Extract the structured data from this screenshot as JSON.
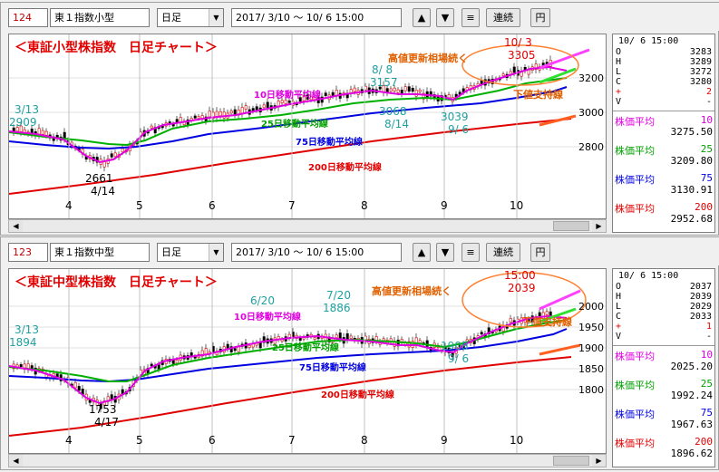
{
  "panels": [
    {
      "code": "124",
      "name": "東１指数小型",
      "period": "日足",
      "range": "2017/ 3/10 ～ 10/ 6 15:00",
      "buttons": {
        "up": "▲",
        "down": "▼",
        "menu": "≡",
        "continuous": "連続",
        "yen": "円"
      },
      "title": "＜東証小型株指数　日足チャート＞",
      "annotations": {
        "high_note": "高値更新相場続く",
        "support": "下値支持線",
        "ma10": "10日移動平均線",
        "ma25": "25日移動平均線",
        "ma75": "75日移動平均線",
        "ma200": "200日移動平均線",
        "d313": "3/13",
        "v313": "2909",
        "d414": "4/14",
        "v414": "2661",
        "d88": "8/ 8",
        "v88": "3157",
        "d814": "8/14",
        "v814": "3068",
        "d96": "9/ 6",
        "v96": "3039",
        "d103": "10/ 3",
        "v103": "3305"
      },
      "yticks": [
        "3200",
        "3000",
        "2800"
      ],
      "months": [
        "4",
        "5",
        "6",
        "7",
        "8",
        "9",
        "10"
      ],
      "info": {
        "date": "10/ 6 15:00",
        "ohlc": [
          {
            "k": "O",
            "v": "3283"
          },
          {
            "k": "H",
            "v": "3289"
          },
          {
            "k": "L",
            "v": "3272"
          },
          {
            "k": "C",
            "v": "3280"
          },
          {
            "k": "+",
            "v": "2"
          },
          {
            "k": "V",
            "v": "-"
          }
        ],
        "ma": [
          {
            "label": "株価平均",
            "period": "10",
            "value": "3275.50",
            "color": "#ff00ff"
          },
          {
            "label": "株価平均",
            "period": "25",
            "value": "3209.80",
            "color": "#00b000"
          },
          {
            "label": "株価平均",
            "period": "75",
            "value": "3130.91",
            "color": "#0000ff"
          },
          {
            "label": "株価平均",
            "period": "200",
            "value": "2952.68",
            "color": "#e00000"
          }
        ]
      }
    },
    {
      "code": "123",
      "name": "東１指数中型",
      "period": "日足",
      "range": "2017/ 3/10 ～ 10/ 6 15:00",
      "buttons": {
        "up": "▲",
        "down": "▼",
        "menu": "≡",
        "continuous": "連続",
        "yen": "円"
      },
      "title": "＜東証中型株指数　日足チャート＞",
      "annotations": {
        "high_note": "高値更新相場続く",
        "support": "下値支持線",
        "ma10": "10日移動平均線",
        "ma25": "25日移動平均線",
        "ma75": "75日移動平均線",
        "ma200": "200日移動平均線",
        "d313": "3/13",
        "v313": "1894",
        "d417": "4/17",
        "v417": "1753",
        "d620": "6/20",
        "d720": "7/20",
        "v720": "1886",
        "d96": "9/ 6",
        "v96": "1908",
        "d1500": "15:00",
        "v1500": "2039"
      },
      "yticks": [
        "2000",
        "1950",
        "1900",
        "1850",
        "1800"
      ],
      "months": [
        "4",
        "5",
        "6",
        "7",
        "8",
        "9",
        "10"
      ],
      "info": {
        "date": "10/ 6 15:00",
        "ohlc": [
          {
            "k": "O",
            "v": "2037"
          },
          {
            "k": "H",
            "v": "2039"
          },
          {
            "k": "L",
            "v": "2029"
          },
          {
            "k": "C",
            "v": "2033"
          },
          {
            "k": "+",
            "v": "1"
          },
          {
            "k": "V",
            "v": "-"
          }
        ],
        "ma": [
          {
            "label": "株価平均",
            "period": "10",
            "value": "2025.20",
            "color": "#ff00ff"
          },
          {
            "label": "株価平均",
            "period": "25",
            "value": "1992.24",
            "color": "#00b000"
          },
          {
            "label": "株価平均",
            "period": "75",
            "value": "1967.63",
            "color": "#0000ff"
          },
          {
            "label": "株価平均",
            "period": "200",
            "value": "1896.62",
            "color": "#e00000"
          }
        ]
      }
    }
  ]
}
